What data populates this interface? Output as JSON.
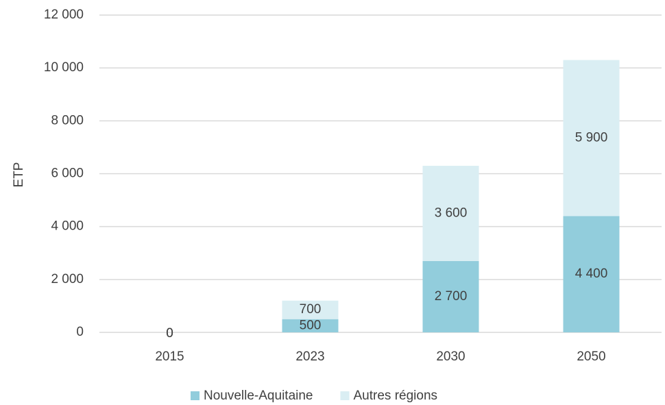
{
  "chart_data": {
    "type": "stacked_bar",
    "y_label": "ETP",
    "categories": [
      "2015",
      "2023",
      "2030",
      "2050"
    ],
    "series": [
      {
        "name": "Nouvelle-Aquitaine",
        "color": "#92cddc",
        "values": [
          0,
          500,
          2700,
          4400
        ],
        "value_labels": [
          "0",
          "500",
          "2 700",
          "4 400"
        ]
      },
      {
        "name": "Autres régions",
        "color": "#daeef3",
        "values": [
          0,
          700,
          3600,
          5900
        ],
        "value_labels": [
          "0",
          "700",
          "3 600",
          "5 900"
        ]
      }
    ],
    "ylim": [
      0,
      12000
    ],
    "yticks": [
      0,
      {
        "value": 2000,
        "label": "2 000"
      },
      {
        "value": 4000,
        "label": "4 000"
      },
      {
        "value": 6000,
        "label": "6 000"
      },
      {
        "value": 8000,
        "label": "8 000"
      },
      {
        "value": 10000,
        "label": "10 000"
      },
      {
        "value": 12000,
        "label": "12 000"
      }
    ],
    "grid": true,
    "legend": "bottom"
  }
}
